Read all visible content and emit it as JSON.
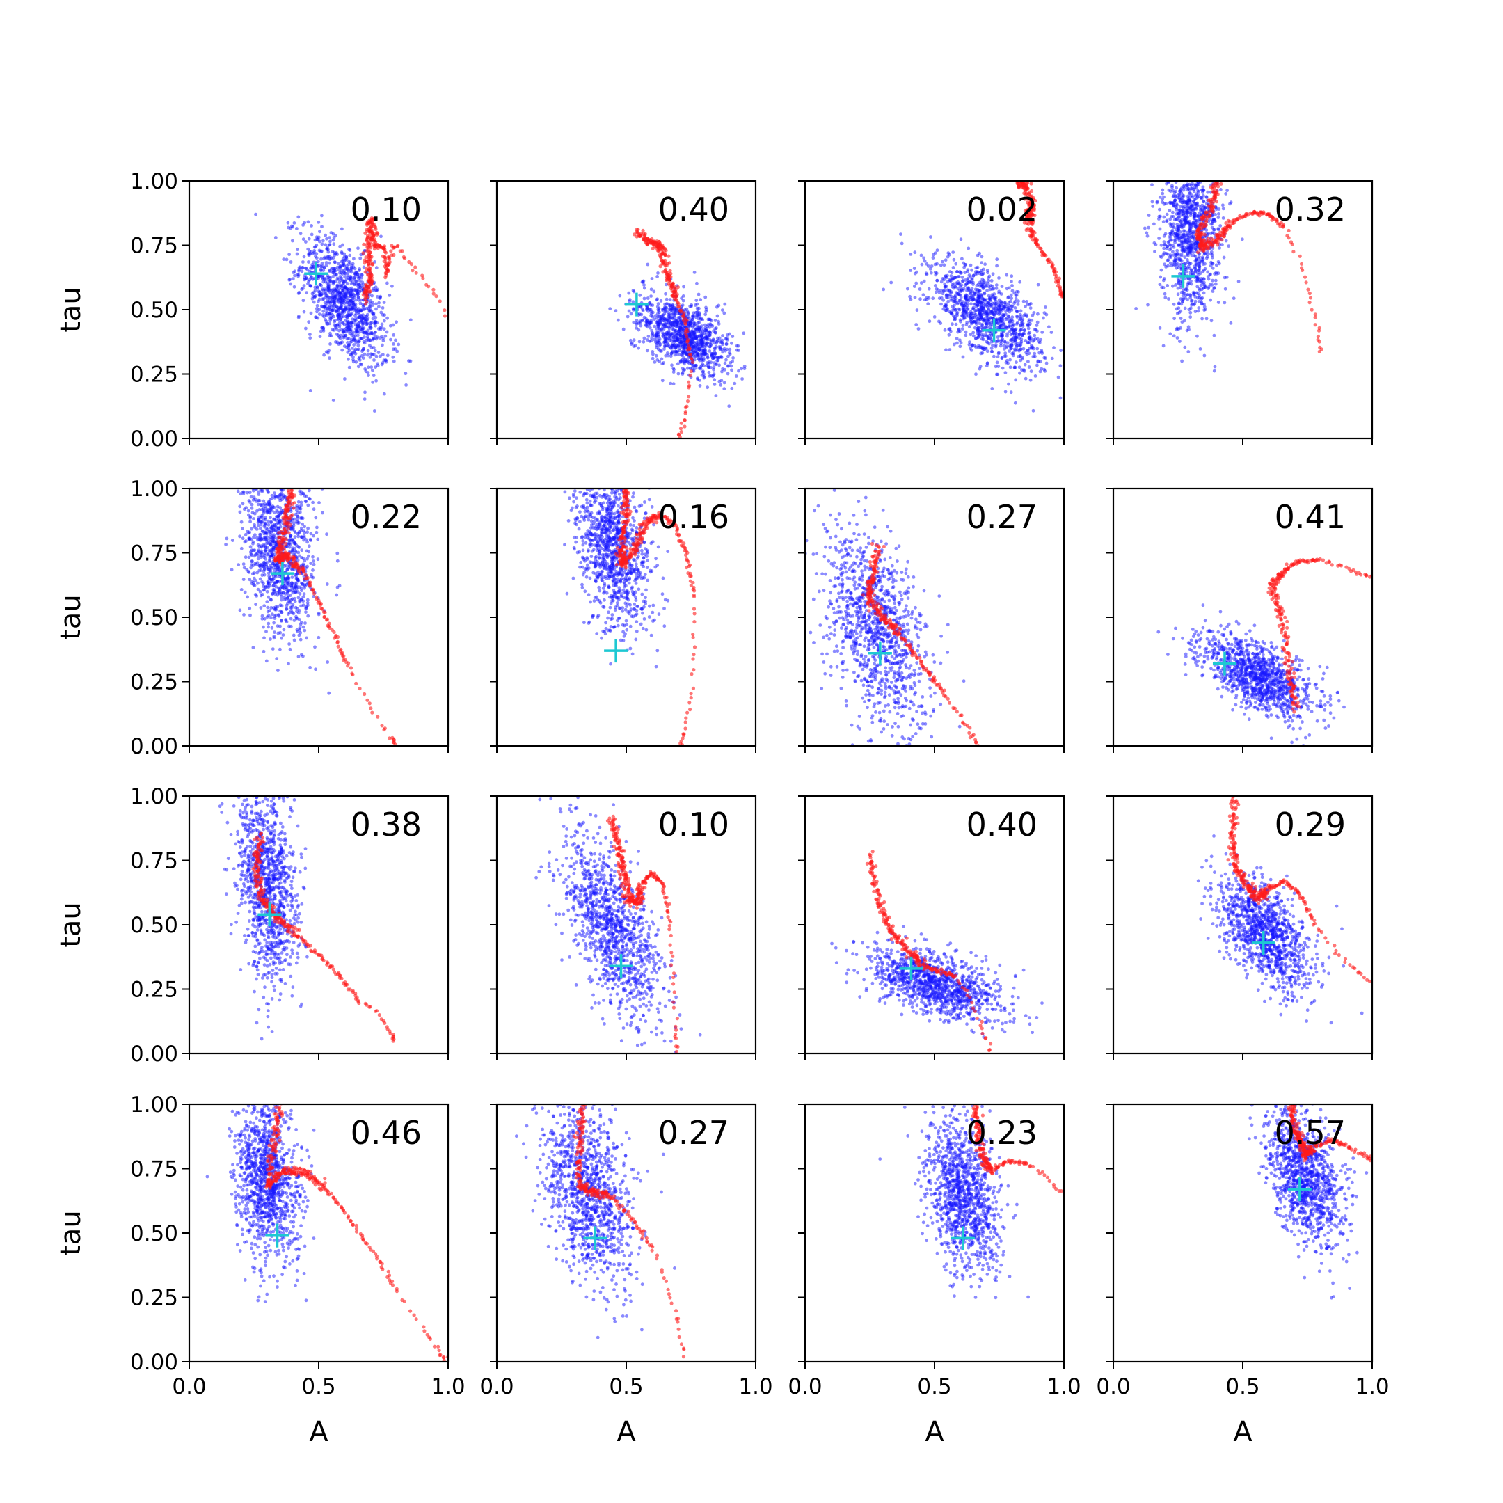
{
  "chart_data": {
    "type": "scatter",
    "grid": {
      "rows": 4,
      "cols": 4,
      "grid_lines": false
    },
    "xlabel": "A",
    "ylabel": "tau",
    "xlim": [
      0,
      1
    ],
    "ylim": [
      0,
      1
    ],
    "x_ticks": [
      "0.0",
      "0.5",
      "1.0"
    ],
    "y_ticks": [
      "0.00",
      "0.25",
      "0.50",
      "0.75",
      "1.00"
    ],
    "colors": {
      "samples": "#1515ff",
      "trajectory": "#ff1a1a",
      "marker": "#1ec8d2"
    },
    "panels": [
      {
        "label": "0.10",
        "marker": [
          0.49,
          0.64
        ],
        "cloud": {
          "cx": 0.6,
          "cy": 0.53,
          "sx": 0.085,
          "sy": 0.13,
          "rho": -0.55,
          "n": 1100
        },
        "trajectory": [
          [
            0.68,
            0.54
          ],
          [
            0.7,
            0.62
          ],
          [
            0.69,
            0.72
          ],
          [
            0.7,
            0.85
          ],
          [
            0.72,
            0.75
          ],
          [
            0.75,
            0.74
          ],
          [
            0.76,
            0.63
          ],
          [
            0.79,
            0.76
          ],
          [
            0.85,
            0.68
          ],
          [
            0.92,
            0.6
          ],
          [
            1.0,
            0.48
          ]
        ]
      },
      {
        "label": "0.40",
        "marker": [
          0.54,
          0.52
        ],
        "cloud": {
          "cx": 0.72,
          "cy": 0.4,
          "sx": 0.09,
          "sy": 0.08,
          "rho": -0.5,
          "n": 1100
        },
        "trajectory": [
          [
            0.54,
            0.8
          ],
          [
            0.6,
            0.76
          ],
          [
            0.64,
            0.74
          ],
          [
            0.66,
            0.63
          ],
          [
            0.69,
            0.55
          ],
          [
            0.73,
            0.45
          ],
          [
            0.75,
            0.3
          ],
          [
            0.74,
            0.15
          ],
          [
            0.72,
            0.06
          ],
          [
            0.7,
            0.0
          ]
        ]
      },
      {
        "label": "0.02",
        "marker": [
          0.73,
          0.42
        ],
        "cloud": {
          "cx": 0.7,
          "cy": 0.48,
          "sx": 0.11,
          "sy": 0.1,
          "rho": -0.6,
          "n": 1100
        },
        "trajectory": [
          [
            0.82,
            1.0
          ],
          [
            0.85,
            0.98
          ],
          [
            0.88,
            0.9
          ],
          [
            0.86,
            0.86
          ],
          [
            0.89,
            0.76
          ],
          [
            0.95,
            0.68
          ],
          [
            0.98,
            0.6
          ],
          [
            0.99,
            0.56
          ],
          [
            1.0,
            0.55
          ]
        ]
      },
      {
        "label": "0.32",
        "marker": [
          0.27,
          0.63
        ],
        "cloud": {
          "cx": 0.3,
          "cy": 0.8,
          "sx": 0.06,
          "sy": 0.16,
          "rho": -0.1,
          "n": 1100
        },
        "trajectory": [
          [
            0.4,
            1.0
          ],
          [
            0.38,
            0.9
          ],
          [
            0.33,
            0.8
          ],
          [
            0.34,
            0.74
          ],
          [
            0.4,
            0.77
          ],
          [
            0.46,
            0.84
          ],
          [
            0.54,
            0.88
          ],
          [
            0.6,
            0.87
          ],
          [
            0.66,
            0.82
          ],
          [
            0.72,
            0.7
          ],
          [
            0.76,
            0.55
          ],
          [
            0.79,
            0.42
          ],
          [
            0.8,
            0.33
          ]
        ]
      },
      {
        "label": "0.22",
        "marker": [
          0.36,
          0.67
        ],
        "cloud": {
          "cx": 0.35,
          "cy": 0.74,
          "sx": 0.07,
          "sy": 0.16,
          "rho": -0.2,
          "n": 1100
        },
        "trajectory": [
          [
            0.4,
            1.0
          ],
          [
            0.38,
            0.9
          ],
          [
            0.36,
            0.8
          ],
          [
            0.34,
            0.72
          ],
          [
            0.38,
            0.74
          ],
          [
            0.44,
            0.68
          ],
          [
            0.5,
            0.56
          ],
          [
            0.56,
            0.43
          ],
          [
            0.62,
            0.3
          ],
          [
            0.7,
            0.15
          ],
          [
            0.78,
            0.03
          ],
          [
            0.8,
            0.0
          ]
        ]
      },
      {
        "label": "0.16",
        "marker": [
          0.46,
          0.37
        ],
        "cloud": {
          "cx": 0.45,
          "cy": 0.77,
          "sx": 0.07,
          "sy": 0.16,
          "rho": -0.3,
          "n": 1100
        },
        "trajectory": [
          [
            0.5,
            1.0
          ],
          [
            0.5,
            0.9
          ],
          [
            0.48,
            0.78
          ],
          [
            0.48,
            0.7
          ],
          [
            0.53,
            0.76
          ],
          [
            0.57,
            0.86
          ],
          [
            0.63,
            0.9
          ],
          [
            0.69,
            0.86
          ],
          [
            0.73,
            0.75
          ],
          [
            0.76,
            0.6
          ],
          [
            0.76,
            0.4
          ],
          [
            0.75,
            0.2
          ],
          [
            0.72,
            0.05
          ],
          [
            0.71,
            0.0
          ]
        ]
      },
      {
        "label": "0.27",
        "marker": [
          0.29,
          0.36
        ],
        "cloud": {
          "cx": 0.27,
          "cy": 0.45,
          "sx": 0.1,
          "sy": 0.2,
          "rho": -0.45,
          "n": 1100
        },
        "trajectory": [
          [
            0.28,
            0.78
          ],
          [
            0.26,
            0.65
          ],
          [
            0.24,
            0.58
          ],
          [
            0.3,
            0.5
          ],
          [
            0.36,
            0.44
          ],
          [
            0.42,
            0.36
          ],
          [
            0.48,
            0.28
          ],
          [
            0.54,
            0.2
          ],
          [
            0.6,
            0.12
          ],
          [
            0.64,
            0.05
          ],
          [
            0.67,
            0.0
          ]
        ]
      },
      {
        "label": "0.41",
        "marker": [
          0.43,
          0.32
        ],
        "cloud": {
          "cx": 0.56,
          "cy": 0.27,
          "sx": 0.11,
          "sy": 0.08,
          "rho": -0.6,
          "n": 1100
        },
        "trajectory": [
          [
            0.7,
            0.14
          ],
          [
            0.68,
            0.3
          ],
          [
            0.65,
            0.5
          ],
          [
            0.61,
            0.62
          ],
          [
            0.66,
            0.68
          ],
          [
            0.72,
            0.72
          ],
          [
            0.8,
            0.72
          ],
          [
            0.88,
            0.7
          ],
          [
            0.95,
            0.67
          ],
          [
            1.0,
            0.66
          ]
        ]
      },
      {
        "label": "0.38",
        "marker": [
          0.31,
          0.54
        ],
        "cloud": {
          "cx": 0.3,
          "cy": 0.68,
          "sx": 0.06,
          "sy": 0.2,
          "rho": -0.3,
          "n": 1100
        },
        "trajectory": [
          [
            0.27,
            0.85
          ],
          [
            0.26,
            0.72
          ],
          [
            0.28,
            0.6
          ],
          [
            0.34,
            0.53
          ],
          [
            0.42,
            0.46
          ],
          [
            0.5,
            0.38
          ],
          [
            0.58,
            0.3
          ],
          [
            0.66,
            0.2
          ],
          [
            0.73,
            0.16
          ],
          [
            0.78,
            0.08
          ],
          [
            0.79,
            0.05
          ]
        ]
      },
      {
        "label": "0.10",
        "marker": [
          0.48,
          0.34
        ],
        "cloud": {
          "cx": 0.45,
          "cy": 0.48,
          "sx": 0.1,
          "sy": 0.18,
          "rho": -0.6,
          "n": 1100
        },
        "trajectory": [
          [
            0.44,
            0.92
          ],
          [
            0.47,
            0.8
          ],
          [
            0.49,
            0.7
          ],
          [
            0.51,
            0.6
          ],
          [
            0.54,
            0.58
          ],
          [
            0.56,
            0.66
          ],
          [
            0.6,
            0.7
          ],
          [
            0.64,
            0.66
          ],
          [
            0.67,
            0.5
          ],
          [
            0.68,
            0.3
          ],
          [
            0.69,
            0.1
          ],
          [
            0.7,
            0.0
          ]
        ]
      },
      {
        "label": "0.40",
        "marker": [
          0.41,
          0.33
        ],
        "cloud": {
          "cx": 0.5,
          "cy": 0.27,
          "sx": 0.13,
          "sy": 0.07,
          "rho": -0.55,
          "n": 1100
        },
        "trajectory": [
          [
            0.25,
            0.78
          ],
          [
            0.28,
            0.6
          ],
          [
            0.33,
            0.48
          ],
          [
            0.4,
            0.4
          ],
          [
            0.46,
            0.34
          ],
          [
            0.52,
            0.32
          ],
          [
            0.58,
            0.3
          ],
          [
            0.64,
            0.22
          ],
          [
            0.68,
            0.1
          ],
          [
            0.72,
            0.0
          ]
        ]
      },
      {
        "label": "0.29",
        "marker": [
          0.58,
          0.43
        ],
        "cloud": {
          "cx": 0.58,
          "cy": 0.47,
          "sx": 0.09,
          "sy": 0.11,
          "rho": -0.55,
          "n": 1100
        },
        "trajectory": [
          [
            0.47,
            1.0
          ],
          [
            0.46,
            0.85
          ],
          [
            0.47,
            0.72
          ],
          [
            0.52,
            0.65
          ],
          [
            0.56,
            0.6
          ],
          [
            0.6,
            0.64
          ],
          [
            0.66,
            0.67
          ],
          [
            0.72,
            0.62
          ],
          [
            0.78,
            0.5
          ],
          [
            0.86,
            0.4
          ],
          [
            0.94,
            0.32
          ],
          [
            1.0,
            0.27
          ]
        ]
      },
      {
        "label": "0.46",
        "marker": [
          0.34,
          0.49
        ],
        "cloud": {
          "cx": 0.3,
          "cy": 0.7,
          "sx": 0.06,
          "sy": 0.16,
          "rho": -0.2,
          "n": 1100
        },
        "trajectory": [
          [
            0.35,
            1.0
          ],
          [
            0.33,
            0.85
          ],
          [
            0.3,
            0.68
          ],
          [
            0.36,
            0.74
          ],
          [
            0.44,
            0.74
          ],
          [
            0.52,
            0.68
          ],
          [
            0.6,
            0.58
          ],
          [
            0.7,
            0.44
          ],
          [
            0.8,
            0.28
          ],
          [
            0.9,
            0.13
          ],
          [
            0.97,
            0.03
          ],
          [
            1.0,
            0.0
          ]
        ]
      },
      {
        "label": "0.27",
        "marker": [
          0.38,
          0.48
        ],
        "cloud": {
          "cx": 0.35,
          "cy": 0.66,
          "sx": 0.09,
          "sy": 0.18,
          "rho": -0.4,
          "n": 1100
        },
        "trajectory": [
          [
            0.33,
            1.0
          ],
          [
            0.32,
            0.85
          ],
          [
            0.32,
            0.68
          ],
          [
            0.37,
            0.66
          ],
          [
            0.44,
            0.64
          ],
          [
            0.52,
            0.56
          ],
          [
            0.6,
            0.44
          ],
          [
            0.66,
            0.3
          ],
          [
            0.7,
            0.15
          ],
          [
            0.73,
            0.0
          ]
        ]
      },
      {
        "label": "0.23",
        "marker": [
          0.61,
          0.48
        ],
        "cloud": {
          "cx": 0.61,
          "cy": 0.65,
          "sx": 0.07,
          "sy": 0.16,
          "rho": -0.3,
          "n": 1100
        },
        "trajectory": [
          [
            0.66,
            1.0
          ],
          [
            0.67,
            0.88
          ],
          [
            0.69,
            0.78
          ],
          [
            0.72,
            0.74
          ],
          [
            0.78,
            0.78
          ],
          [
            0.86,
            0.77
          ],
          [
            0.93,
            0.72
          ],
          [
            1.0,
            0.65
          ]
        ]
      },
      {
        "label": "0.57",
        "marker": [
          0.72,
          0.67
        ],
        "cloud": {
          "cx": 0.74,
          "cy": 0.72,
          "sx": 0.07,
          "sy": 0.13,
          "rho": -0.4,
          "n": 1100
        },
        "trajectory": [
          [
            0.69,
            1.0
          ],
          [
            0.7,
            0.9
          ],
          [
            0.73,
            0.85
          ],
          [
            0.74,
            0.8
          ],
          [
            0.78,
            0.84
          ],
          [
            0.85,
            0.86
          ],
          [
            0.92,
            0.83
          ],
          [
            0.97,
            0.8
          ],
          [
            1.0,
            0.79
          ]
        ]
      }
    ]
  }
}
